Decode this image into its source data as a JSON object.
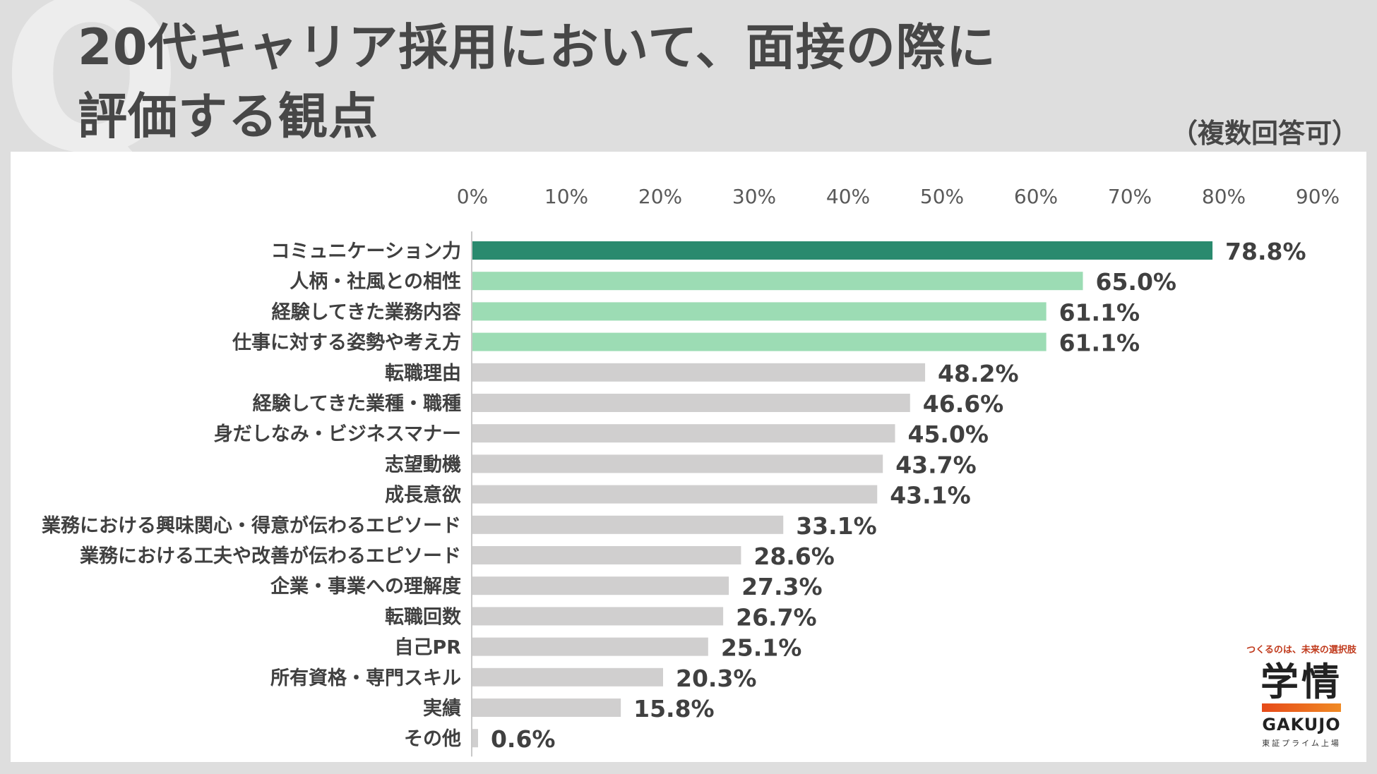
{
  "header": {
    "title_line1": "20代キャリア採用において、面接の際に",
    "title_line2": "評価する観点",
    "note": "（複数回答可）",
    "q_mark": "Q"
  },
  "logo": {
    "tagline": "つくるのは、未来の選択肢",
    "name_jp": "学情",
    "name_en": "GAKUJO",
    "sub": "東証プライム上場"
  },
  "colors": {
    "top": "#2a8a6e",
    "highlight": "#9cdcb4",
    "other": "#d0cfcf",
    "text": "#404040"
  },
  "chart_data": {
    "type": "bar",
    "orientation": "horizontal",
    "title": "20代キャリア採用において、面接の際に評価する観点",
    "xlim": [
      0,
      90
    ],
    "x_ticks": [
      "0%",
      "10%",
      "20%",
      "30%",
      "40%",
      "50%",
      "60%",
      "70%",
      "80%",
      "90%"
    ],
    "categories": [
      "コミュニケーション力",
      "人柄・社風との相性",
      "経験してきた業務内容",
      "仕事に対する姿勢や考え方",
      "転職理由",
      "経験してきた業種・職種",
      "身だしなみ・ビジネスマナー",
      "志望動機",
      "成長意欲",
      "業務における興味関心・得意が伝わるエピソード",
      "業務における工夫や改善が伝わるエピソード",
      "企業・事業への理解度",
      "転職回数",
      "自己PR",
      "所有資格・専門スキル",
      "実績",
      "その他"
    ],
    "values": [
      78.8,
      65.0,
      61.1,
      61.1,
      48.2,
      46.6,
      45.0,
      43.7,
      43.1,
      33.1,
      28.6,
      27.3,
      26.7,
      25.1,
      20.3,
      15.8,
      0.6
    ],
    "labels": [
      "78.8%",
      "65.0%",
      "61.1%",
      "61.1%",
      "48.2%",
      "46.6%",
      "45.0%",
      "43.7%",
      "43.1%",
      "33.1%",
      "28.6%",
      "27.3%",
      "26.7%",
      "25.1%",
      "20.3%",
      "15.8%",
      "0.6%"
    ],
    "color_group": [
      "top",
      "highlight",
      "highlight",
      "highlight",
      "other",
      "other",
      "other",
      "other",
      "other",
      "other",
      "other",
      "other",
      "other",
      "other",
      "other",
      "other",
      "other"
    ]
  }
}
